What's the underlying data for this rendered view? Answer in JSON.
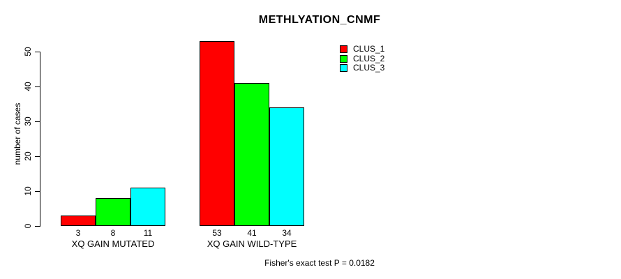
{
  "chart_data": {
    "type": "bar",
    "title": "METHLYATION_CNMF",
    "ylabel": "number of cases",
    "xlabel": "",
    "categories": [
      "XQ GAIN MUTATED",
      "XQ GAIN WILD-TYPE"
    ],
    "series": [
      {
        "name": "CLUS_1",
        "color": "#ff0000",
        "values": [
          3,
          53
        ]
      },
      {
        "name": "CLUS_2",
        "color": "#00ff00",
        "values": [
          8,
          41
        ]
      },
      {
        "name": "CLUS_3",
        "color": "#00ffff",
        "values": [
          11,
          34
        ]
      }
    ],
    "bar_value_labels": [
      [
        "3",
        "8",
        "11"
      ],
      [
        "53",
        "41",
        "34"
      ]
    ],
    "yticks": [
      0,
      10,
      20,
      30,
      40,
      50
    ],
    "ylim": [
      0,
      53
    ],
    "grid": false,
    "legend_position": "top-right",
    "annotation": "Fisher's exact test P = 0.0182"
  },
  "colors": {
    "axis": "#000000",
    "background": "#ffffff",
    "text": "#000000"
  }
}
